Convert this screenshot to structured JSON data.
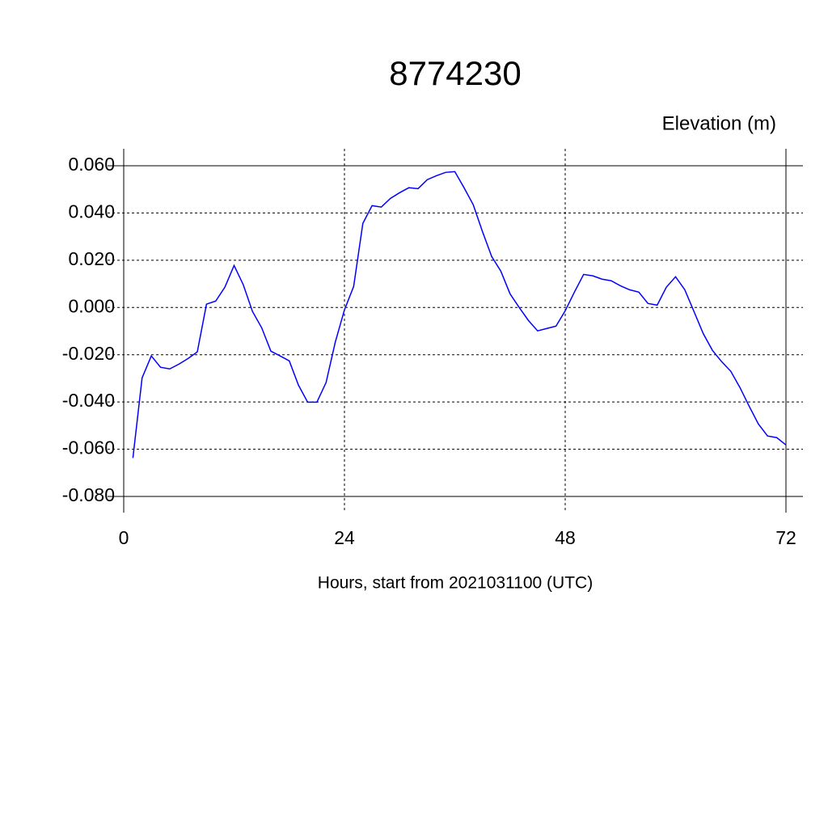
{
  "chart_data": {
    "type": "line",
    "title": "8774230",
    "y_label": "Elevation (m)",
    "x_label": "Hours, start from 2021031100 (UTC)",
    "x": [
      1,
      2,
      3,
      4,
      5,
      6,
      7,
      8,
      9,
      10,
      11,
      12,
      13,
      14,
      15,
      16,
      17,
      18,
      19,
      20,
      21,
      22,
      23,
      24,
      25,
      26,
      27,
      28,
      29,
      30,
      31,
      32,
      33,
      34,
      35,
      36,
      37,
      38,
      39,
      40,
      41,
      42,
      43,
      44,
      45,
      46,
      47,
      48,
      49,
      50,
      51,
      52,
      53,
      54,
      55,
      56,
      57,
      58,
      59,
      60,
      61,
      62,
      63,
      64,
      65,
      66,
      67,
      68,
      69,
      70,
      71,
      72
    ],
    "series": [
      {
        "name": "Elevation",
        "color": "#0000ff",
        "values": [
          -0.0637,
          -0.0298,
          -0.0205,
          -0.0253,
          -0.026,
          -0.024,
          -0.0216,
          -0.0188,
          0.0014,
          0.0027,
          0.0086,
          0.0178,
          0.0096,
          -0.0017,
          -0.0086,
          -0.0185,
          -0.0205,
          -0.0226,
          -0.0329,
          -0.0401,
          -0.0401,
          -0.0318,
          -0.0147,
          -0.001,
          0.0089,
          0.0356,
          0.0431,
          0.0425,
          0.0462,
          0.0486,
          0.0507,
          0.0503,
          0.0541,
          0.0558,
          0.0572,
          0.0575,
          0.0507,
          0.0435,
          0.0322,
          0.0216,
          0.0154,
          0.0058,
          0,
          -0.0055,
          -0.0099,
          -0.0089,
          -0.0079,
          -0.0014,
          0.0065,
          0.014,
          0.0134,
          0.012,
          0.0113,
          0.0092,
          0.0075,
          0.0065,
          0.0017,
          0.001,
          0.0086,
          0.013,
          0.0075,
          -0.0017,
          -0.011,
          -0.0181,
          -0.0229,
          -0.027,
          -0.0339,
          -0.0418,
          -0.0493,
          -0.0544,
          -0.0551,
          -0.0582
        ]
      }
    ],
    "xlim": [
      0,
      72
    ],
    "xticks": [
      0,
      24,
      48,
      72
    ],
    "ylim": [
      -0.08,
      0.06
    ],
    "yticks": [
      {
        "value": -0.08,
        "label": "-0.080"
      },
      {
        "value": -0.06,
        "label": "-0.060"
      },
      {
        "value": -0.04,
        "label": "-0.040"
      },
      {
        "value": -0.02,
        "label": "-0.020"
      },
      {
        "value": 0,
        "label": "0.000"
      },
      {
        "value": 0.02,
        "label": "0.020"
      },
      {
        "value": 0.04,
        "label": "0.040"
      },
      {
        "value": 0.06,
        "label": "0.060"
      }
    ],
    "grid": true
  }
}
